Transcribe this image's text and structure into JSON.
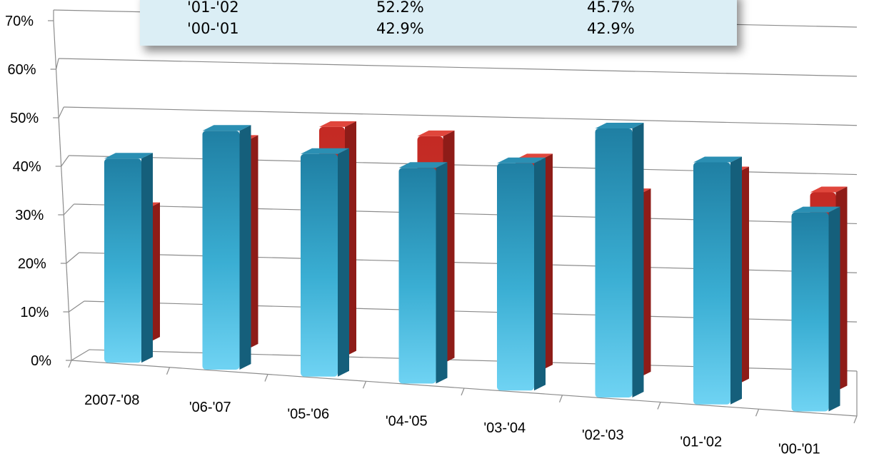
{
  "chart_data": {
    "type": "bar",
    "title": "",
    "xlabel": "",
    "ylabel": "",
    "ylim": [
      0,
      70
    ],
    "yticks": [
      "0%",
      "10%",
      "20%",
      "30%",
      "40%",
      "50%",
      "60%",
      "70%"
    ],
    "categories": [
      "2007-'08",
      "'06-'07",
      "'05-'06",
      "'04-'05",
      "'03-'04",
      "'02-'03",
      "'01-'02",
      "'00-'01"
    ],
    "series": [
      {
        "values": [
          44.0,
          51.5,
          48.0,
          46.5,
          49.0,
          58.0,
          52.2,
          42.9
        ],
        "color": "#2aa1c5"
      },
      {
        "values": [
          29.0,
          45.0,
          49.5,
          49.0,
          45.5,
          39.5,
          45.7,
          42.9
        ],
        "color": "#d0302a"
      }
    ],
    "grid": true,
    "table_rows": [
      [
        "'01-'02",
        "52.2%",
        "45.7%"
      ],
      [
        "'00-'01",
        "42.9%",
        "42.9%"
      ]
    ]
  }
}
